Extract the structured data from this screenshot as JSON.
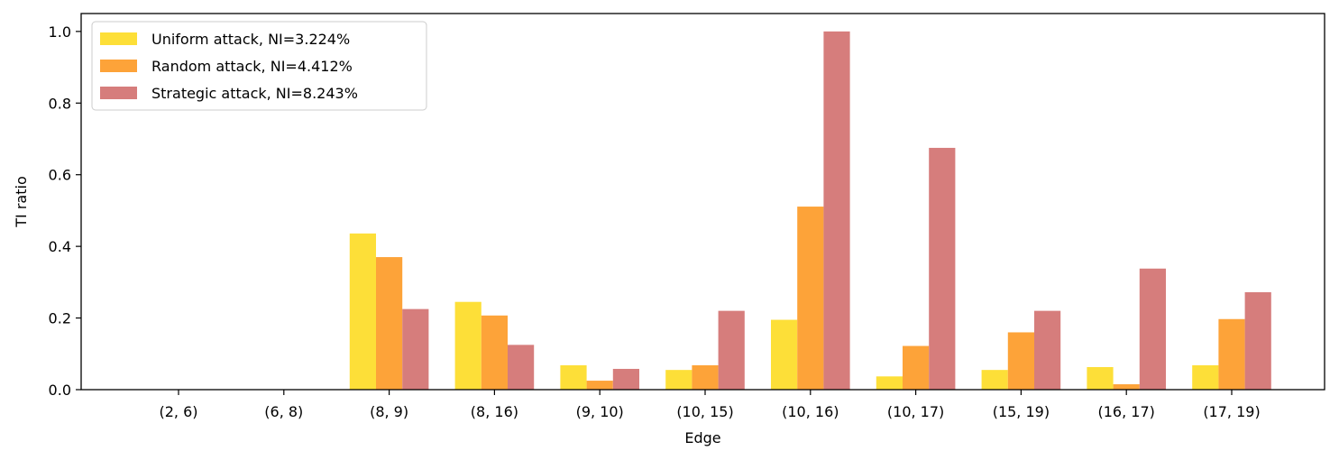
{
  "chart_data": {
    "type": "bar",
    "xlabel": "Edge",
    "ylabel": "TI ratio",
    "ylim": [
      0,
      1.05
    ],
    "yticks": [
      "0.0",
      "0.2",
      "0.4",
      "0.6",
      "0.8",
      "1.0"
    ],
    "categories": [
      "(2, 6)",
      "(6, 8)",
      "(8, 9)",
      "(8, 16)",
      "(9, 10)",
      "(10, 15)",
      "(10, 16)",
      "(10, 17)",
      "(15, 19)",
      "(16, 17)",
      "(17, 19)"
    ],
    "series": [
      {
        "name": "Uniform attack, NI=3.224%",
        "color": "#fddf38",
        "values": [
          0,
          0,
          0.436,
          0.245,
          0.068,
          0.055,
          0.195,
          0.037,
          0.055,
          0.063,
          0.068
        ]
      },
      {
        "name": "Random attack, NI=4.412%",
        "color": "#fda339",
        "values": [
          0,
          0,
          0.37,
          0.207,
          0.025,
          0.068,
          0.511,
          0.122,
          0.16,
          0.015,
          0.197
        ]
      },
      {
        "name": "Strategic attack, NI=8.243%",
        "color": "#d67d7c",
        "values": [
          0,
          0,
          0.225,
          0.125,
          0.058,
          0.22,
          1.0,
          0.675,
          0.22,
          0.338,
          0.272
        ]
      }
    ],
    "legend_position": "top-left",
    "grid": false
  }
}
